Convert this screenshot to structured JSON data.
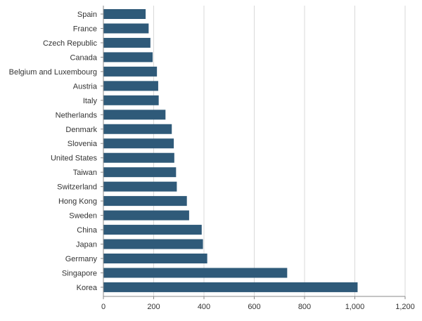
{
  "chart_data": {
    "type": "bar",
    "orientation": "horizontal",
    "title": "",
    "xlabel": "",
    "ylabel": "",
    "categories": [
      "Spain",
      "France",
      "Czech Republic",
      "Canada",
      "Belgium and Luxembourg",
      "Austria",
      "Italy",
      "Netherlands",
      "Denmark",
      "Slovenia",
      "United States",
      "Taiwan",
      "Switzerland",
      "Hong Kong",
      "Sweden",
      "China",
      "Japan",
      "Germany",
      "Singapore",
      "Korea"
    ],
    "values": [
      168,
      180,
      187,
      196,
      213,
      218,
      220,
      247,
      272,
      280,
      282,
      289,
      292,
      332,
      341,
      391,
      396,
      413,
      731,
      1011
    ],
    "xlim": [
      0,
      1200
    ],
    "xticks": [
      0,
      200,
      400,
      600,
      800,
      1000,
      1200
    ],
    "xtick_labels": [
      "0",
      "200",
      "400",
      "600",
      "800",
      "1,000",
      "1,200"
    ],
    "grid": "vertical",
    "legend": "none",
    "colors": {
      "bar": "#2f5a79",
      "grid": "#d9d9d9",
      "axis": "#8a8a8a",
      "text": "#333333"
    }
  }
}
